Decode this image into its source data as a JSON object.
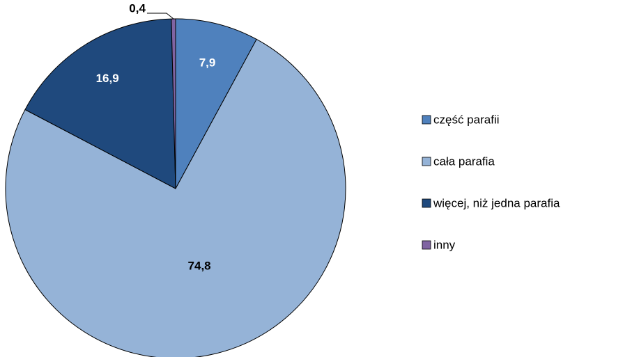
{
  "chart_data": {
    "type": "pie",
    "categories": [
      "część parafii",
      "cała parafia",
      "więcej, niż jedna parafia",
      "inny"
    ],
    "values": [
      7.9,
      74.8,
      16.9,
      0.4
    ],
    "value_labels": [
      "7,9",
      "74,8",
      "16,9",
      "0,4"
    ],
    "colors": [
      "#4f81bd",
      "#95b3d7",
      "#1f497d",
      "#8064a2"
    ],
    "legend": "right"
  }
}
